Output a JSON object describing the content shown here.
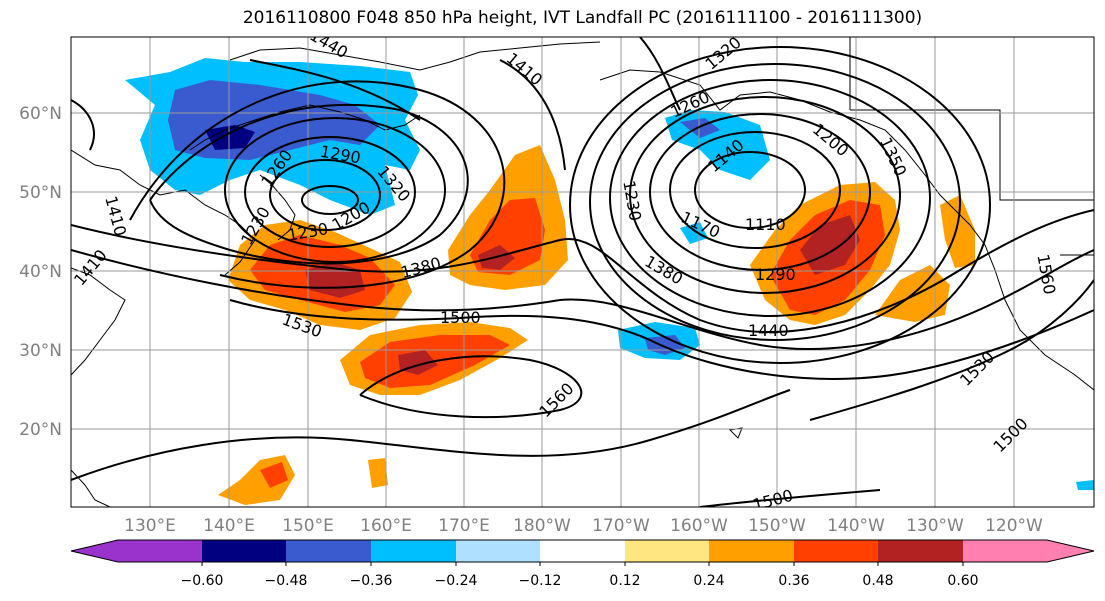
{
  "title": "2016110800 F048 850 hPa height, IVT Landfall PC (2016111100 - 2016111300)",
  "map": {
    "lat_labels": [
      "60°N",
      "50°N",
      "40°N",
      "30°N",
      "20°N"
    ],
    "lon_labels": [
      "130°E",
      "140°E",
      "150°E",
      "160°E",
      "170°E",
      "180°W",
      "170°W",
      "160°W",
      "150°W",
      "140°W",
      "130°W",
      "120°W"
    ],
    "contour_labels": [
      "1440",
      "1410",
      "1320",
      "1260",
      "1290",
      "1320",
      "1200",
      "1230",
      "1260",
      "1230",
      "1380",
      "1500",
      "1530",
      "1560",
      "1140",
      "1230",
      "1170",
      "1110",
      "1200",
      "1290",
      "1380",
      "1440",
      "1350",
      "1560",
      "1530",
      "1500",
      "1500",
      "1410",
      "1410"
    ]
  },
  "colorbar": {
    "tick_labels": [
      "−0.60",
      "−0.48",
      "−0.36",
      "−0.24",
      "−0.12",
      "0.12",
      "0.24",
      "0.36",
      "0.48",
      "0.60"
    ],
    "colors": [
      "#9933cc",
      "#000080",
      "#3a5bd0",
      "#00bfff",
      "#b0e0ff",
      "#ffffff",
      "#ffe680",
      "#ffa000",
      "#ff4000",
      "#b22222",
      "#ff80b0"
    ]
  }
}
